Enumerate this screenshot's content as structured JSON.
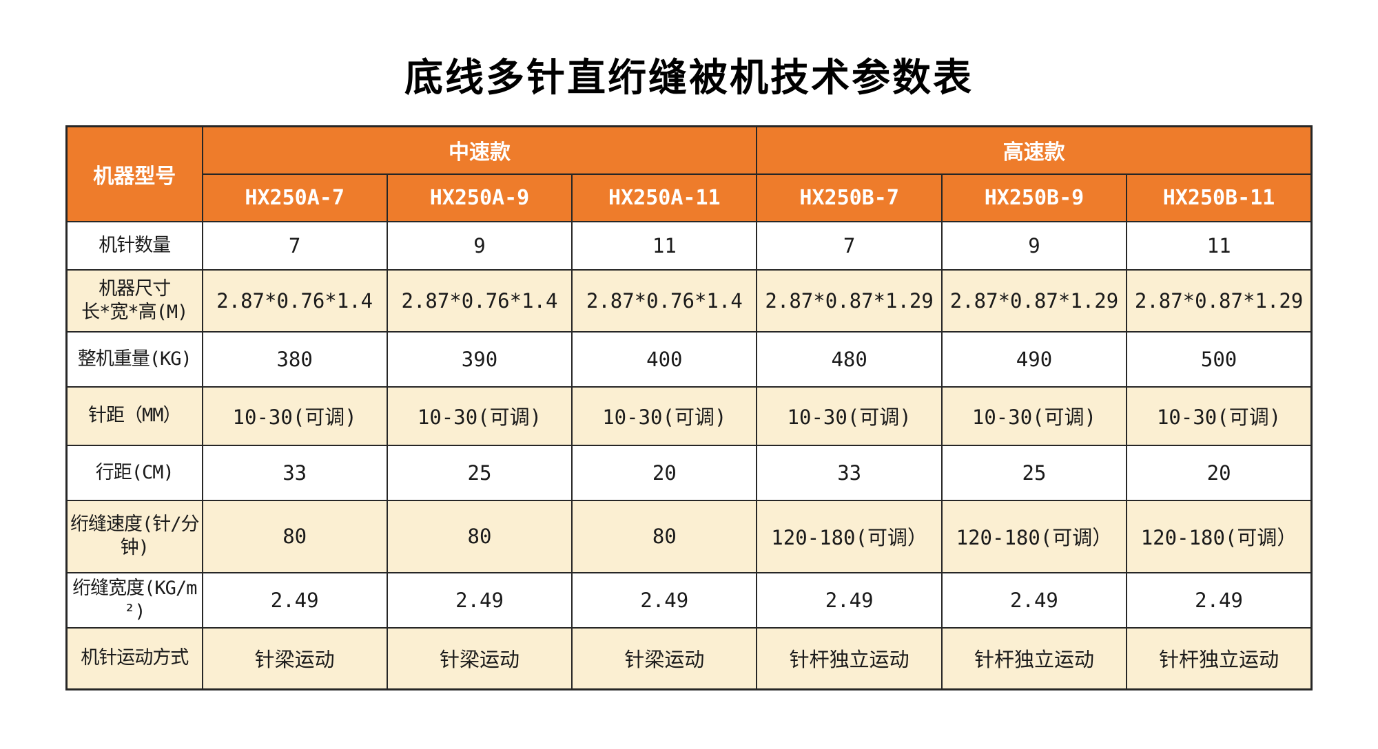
{
  "page_title": "底线多针直绗缝被机技术参数表",
  "colors": {
    "header_bg": "#EE7C2B",
    "header_text": "#FFFFFF",
    "row_alt_bg": "#FBEFD2",
    "border": "#262626"
  },
  "table": {
    "corner_label": "机器型号",
    "groups": [
      {
        "label": "中速款",
        "models": [
          "HX250A-7",
          "HX250A-9",
          "HX250A-11"
        ]
      },
      {
        "label": "高速款",
        "models": [
          "HX250B-7",
          "HX250B-9",
          "HX250B-11"
        ]
      }
    ],
    "rows": [
      {
        "label": "机针数量",
        "values": [
          "7",
          "9",
          "11",
          "7",
          "9",
          "11"
        ]
      },
      {
        "label": "机器尺寸\n长*宽*高(M)",
        "values": [
          "2.87*0.76*1.4",
          "2.87*0.76*1.4",
          "2.87*0.76*1.4",
          "2.87*0.87*1.29",
          "2.87*0.87*1.29",
          "2.87*0.87*1.29"
        ]
      },
      {
        "label": "整机重量(KG)",
        "values": [
          "380",
          "390",
          "400",
          "480",
          "490",
          "500"
        ]
      },
      {
        "label": "针距（MM）",
        "values": [
          "10-30(可调)",
          "10-30(可调)",
          "10-30(可调)",
          "10-30(可调)",
          "10-30(可调)",
          "10-30(可调)"
        ]
      },
      {
        "label": "行距(CM)",
        "values": [
          "33",
          "25",
          "20",
          "33",
          "25",
          "20"
        ]
      },
      {
        "label": "绗缝速度(针/分钟)",
        "values": [
          "80",
          "80",
          "80",
          "120-180(可调）",
          "120-180(可调）",
          "120-180(可调）"
        ]
      },
      {
        "label": "绗缝宽度(KG/m²)",
        "values": [
          "2.49",
          "2.49",
          "2.49",
          "2.49",
          "2.49",
          "2.49"
        ]
      },
      {
        "label": "机针运动方式",
        "values": [
          "针梁运动",
          "针梁运动",
          "针梁运动",
          "针杆独立运动",
          "针杆独立运动",
          "针杆独立运动"
        ]
      }
    ]
  }
}
